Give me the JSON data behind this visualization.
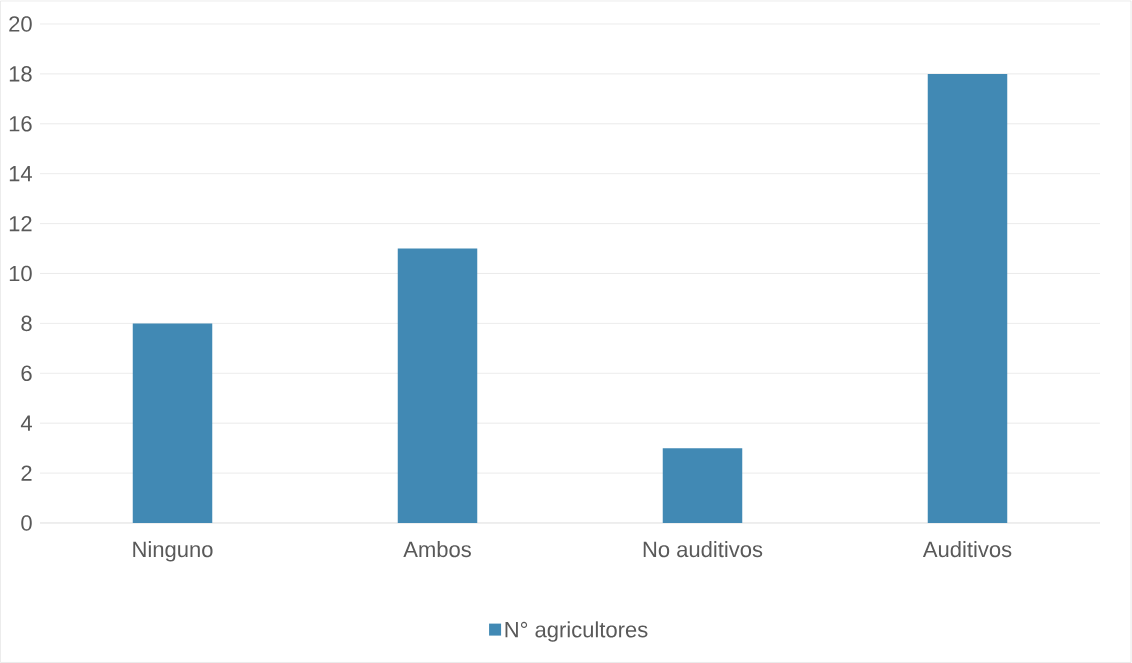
{
  "chart_data": {
    "type": "bar",
    "categories": [
      "Ninguno",
      "Ambos",
      "No auditivos",
      "Auditivos"
    ],
    "series": [
      {
        "name": "N° agricultores",
        "color": "#4189b4",
        "values": [
          8,
          11,
          3,
          18
        ]
      }
    ],
    "ylim": [
      0,
      20
    ],
    "yticks": [
      0,
      2,
      4,
      6,
      8,
      10,
      12,
      14,
      16,
      18,
      20
    ],
    "grid": "y",
    "legend": "bottom"
  }
}
